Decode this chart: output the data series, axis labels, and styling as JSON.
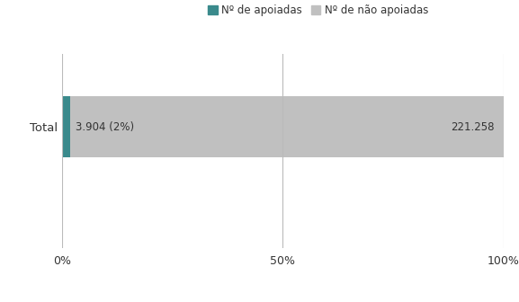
{
  "categories": [
    "Total"
  ],
  "apoiadas_pct": [
    1.7341
  ],
  "nao_apoiadas_pct": [
    98.2659
  ],
  "apoiadas_label": "3.904 (2%)",
  "nao_apoiadas_label": "221.258",
  "legend_apoiadas": "Nº de apoiadas",
  "legend_nao_apoiadas": "Nº de não apoiadas",
  "color_apoiadas": "#3a8a8c",
  "color_nao_apoiadas": "#c0c0c0",
  "xlabel_ticks": [
    "0%",
    "50%",
    "100%"
  ],
  "xlabel_vals": [
    0,
    50,
    100
  ],
  "bar_height": 0.38,
  "label_fontsize": 8.5,
  "legend_fontsize": 8.5,
  "ytick_fontsize": 9.5,
  "xtick_fontsize": 9,
  "background_color": "#ffffff",
  "edge_color": "none",
  "grid_color": "#bbbbbb",
  "text_color": "#333333"
}
